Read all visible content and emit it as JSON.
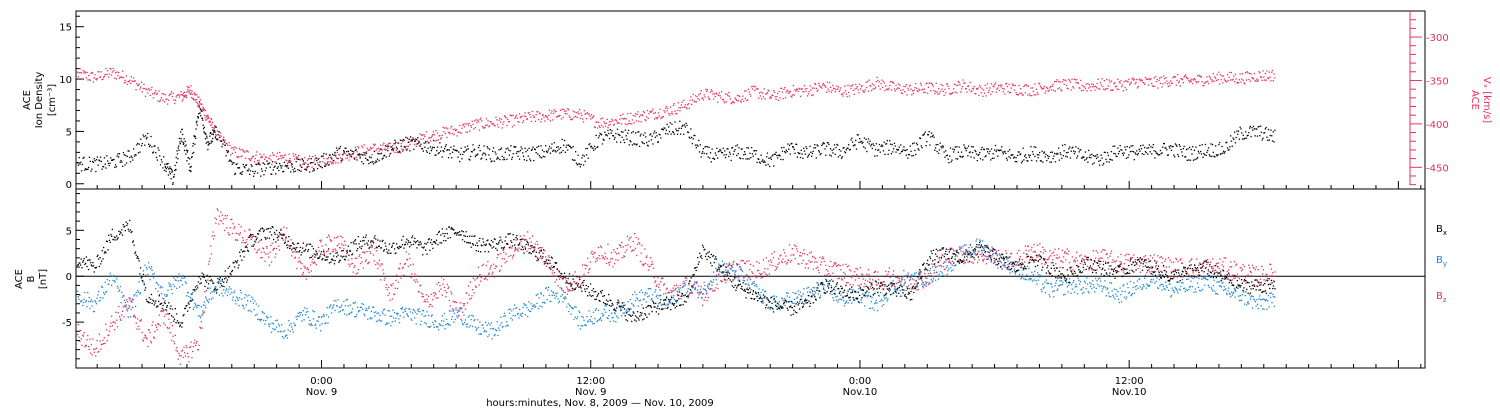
{
  "colors": {
    "black": "#000000",
    "pink": "#e8305f",
    "blue": "#1f86d6"
  },
  "chart_data": [
    {
      "type": "scatter",
      "panel": "top",
      "ylabel_left": [
        "ACE",
        "Ion Density",
        "[cm⁻³]"
      ],
      "ylabel_right": [
        "ACE",
        "Vₓ [km/s]"
      ],
      "ylim_left": [
        -0.5,
        16.5
      ],
      "yticks_left": [
        0,
        5,
        10,
        15
      ],
      "ylim_right": [
        -475,
        -270
      ],
      "yticks_right": [
        -450,
        -400,
        -350,
        -300
      ],
      "grid": false,
      "series": [
        {
          "axis": "left",
          "color": "black",
          "x": [
            0,
            1,
            2,
            3,
            4,
            5,
            5.5,
            6,
            6.5,
            7,
            7.5,
            8,
            9,
            10,
            11,
            12,
            13,
            14,
            15,
            16,
            17,
            18,
            19,
            20,
            21,
            22,
            23,
            24,
            25,
            26,
            27,
            28,
            29,
            30,
            31,
            32,
            33,
            34,
            35,
            36,
            37,
            38,
            39,
            40,
            41,
            42,
            43,
            44,
            45,
            46,
            47,
            48,
            49,
            50,
            51,
            52,
            53,
            54,
            55,
            56,
            57,
            58,
            59,
            60,
            61,
            62,
            63,
            64,
            65,
            66,
            67,
            68,
            69
          ],
          "y": [
            2,
            1.9,
            2.1,
            2.6,
            4.5,
            2,
            0.5,
            5,
            1.5,
            7.5,
            4,
            5,
            1.6,
            1.3,
            1.6,
            1.8,
            1.7,
            2.1,
            3,
            2.8,
            2.5,
            3.4,
            3.9,
            3.7,
            3.3,
            2.8,
            3.2,
            2.8,
            3,
            2.9,
            3.1,
            3.8,
            2.2,
            4.3,
            4.7,
            4.4,
            4.2,
            5.2,
            5.4,
            3,
            2.7,
            3.1,
            2.8,
            2.2,
            3.5,
            2.9,
            3.4,
            3.1,
            4.2,
            3.3,
            3.6,
            3.1,
            4.6,
            2.7,
            3.1,
            2.8,
            3.1,
            2.6,
            3,
            2.7,
            3.2,
            2.6,
            2.4,
            3.3,
            3,
            3.2,
            3.4,
            2.9,
            3.3,
            3.3,
            4.9,
            5,
            4.5
          ]
        },
        {
          "axis": "right",
          "color": "pink",
          "x": [
            0,
            1,
            2,
            3,
            4,
            5,
            6,
            6.5,
            7,
            7.5,
            8,
            9,
            10,
            11,
            12,
            13,
            14,
            15,
            16,
            17,
            18,
            19,
            20,
            21,
            22,
            23,
            24,
            25,
            26,
            27,
            28,
            29,
            30,
            31,
            32,
            33,
            34,
            35,
            36,
            37,
            38,
            39,
            40,
            41,
            42,
            43,
            44,
            45,
            46,
            47,
            48,
            49,
            50,
            51,
            52,
            53,
            54,
            55,
            56,
            57,
            58,
            59,
            60,
            61,
            62,
            63,
            64,
            65,
            66,
            67,
            68,
            69
          ],
          "y": [
            -342,
            -346,
            -340,
            -348,
            -362,
            -370,
            -368,
            -360,
            -376,
            -392,
            -412,
            -432,
            -436,
            -440,
            -438,
            -444,
            -442,
            -438,
            -432,
            -428,
            -428,
            -424,
            -415,
            -410,
            -406,
            -400,
            -398,
            -396,
            -392,
            -390,
            -388,
            -389,
            -398,
            -396,
            -392,
            -388,
            -384,
            -378,
            -365,
            -368,
            -370,
            -362,
            -368,
            -362,
            -361,
            -356,
            -362,
            -359,
            -352,
            -358,
            -360,
            -358,
            -360,
            -355,
            -361,
            -358,
            -359,
            -360,
            -356,
            -354,
            -356,
            -354,
            -355,
            -351,
            -352,
            -349,
            -350,
            -348,
            -346,
            -347,
            -344,
            -343
          ]
        }
      ]
    },
    {
      "type": "scatter",
      "panel": "bottom",
      "ylabel": [
        "ACE",
        "B",
        "[nT]"
      ],
      "ylim": [
        -10,
        9.5
      ],
      "yticks": [
        -5,
        0,
        5
      ],
      "zero_line": true,
      "grid": false,
      "legend_position": "right",
      "legend": [
        {
          "label_main": "B",
          "label_sub": "x",
          "color": "black"
        },
        {
          "label_main": "B",
          "label_sub": "y",
          "color": "blue"
        },
        {
          "label_main": "B",
          "label_sub": "z",
          "color": "pink"
        }
      ],
      "series": [
        {
          "name": "Bx",
          "color": "black",
          "x": [
            0,
            1,
            2,
            3,
            4,
            5,
            6,
            7,
            8,
            9,
            10,
            11,
            12,
            13,
            14,
            15,
            16,
            17,
            18,
            19,
            20,
            21,
            22,
            23,
            24,
            25,
            26,
            27,
            28,
            29,
            30,
            31,
            32,
            33,
            34,
            35,
            36,
            37,
            38,
            39,
            40,
            41,
            42,
            43,
            44,
            45,
            46,
            47,
            48,
            49,
            50,
            51,
            52,
            53,
            54,
            55,
            56,
            57,
            58,
            59,
            60,
            61,
            62,
            63,
            64,
            65,
            66,
            67,
            68,
            69
          ],
          "y": [
            2,
            1,
            4.5,
            5.5,
            -2,
            -3,
            -5,
            0,
            -1,
            1,
            4,
            5,
            4,
            3,
            2.5,
            2,
            3.5,
            4,
            3,
            4,
            3,
            4.5,
            5,
            3.5,
            3.5,
            4,
            3,
            2,
            0,
            -1,
            -2,
            -3,
            -4.5,
            -3.5,
            -3,
            -2.5,
            3,
            1,
            -1,
            -2,
            -3,
            -3.5,
            -3,
            -1,
            -1.5,
            -2,
            -1,
            -1.5,
            -2,
            2,
            2.5,
            2,
            3,
            2,
            1,
            2,
            1,
            0,
            1.5,
            1,
            0.5,
            1.5,
            1,
            0,
            0.5,
            1,
            0,
            -1,
            -1,
            -1
          ]
        },
        {
          "name": "By",
          "color": "blue",
          "x": [
            0,
            1,
            2,
            3,
            4,
            5,
            6,
            7,
            8,
            9,
            10,
            11,
            12,
            13,
            14,
            15,
            16,
            17,
            18,
            19,
            20,
            21,
            22,
            23,
            24,
            25,
            26,
            27,
            28,
            29,
            30,
            31,
            32,
            33,
            34,
            35,
            36,
            37,
            38,
            39,
            40,
            41,
            42,
            43,
            44,
            45,
            46,
            47,
            48,
            49,
            50,
            51,
            52,
            53,
            54,
            55,
            56,
            57,
            58,
            59,
            60,
            61,
            62,
            63,
            64,
            65,
            66,
            67,
            68,
            69
          ],
          "y": [
            -2,
            -3,
            0,
            -4,
            1,
            -2,
            0,
            -4,
            -1,
            -2,
            -3,
            -5,
            -6,
            -4,
            -5,
            -3,
            -3.5,
            -4,
            -4.5,
            -4,
            -4.5,
            -5,
            -4,
            -5.5,
            -6,
            -4,
            -3.5,
            -2,
            -2,
            -5,
            -4,
            -4,
            -2.5,
            -2,
            -3,
            -1,
            -1.5,
            1,
            0.5,
            -1.5,
            -3,
            -2.5,
            -2,
            -1,
            -2.5,
            -2,
            -3,
            -1,
            -0.5,
            0,
            1,
            2.5,
            3.5,
            2,
            1,
            0,
            -1.5,
            -1,
            -1,
            -1,
            -2,
            -1,
            0,
            -1.5,
            -1,
            -0.5,
            -1.5,
            -2,
            -3,
            -2.5
          ]
        },
        {
          "name": "Bz",
          "color": "pink",
          "x": [
            0,
            1,
            2,
            3,
            4,
            5,
            6,
            7,
            8,
            9,
            10,
            11,
            12,
            13,
            14,
            15,
            16,
            17,
            18,
            19,
            20,
            21,
            22,
            23,
            24,
            25,
            26,
            27,
            28,
            29,
            30,
            31,
            32,
            33,
            34,
            35,
            36,
            37,
            38,
            39,
            40,
            41,
            42,
            43,
            44,
            45,
            46,
            47,
            48,
            49,
            50,
            51,
            52,
            53,
            54,
            55,
            56,
            57,
            58,
            59,
            60,
            61,
            62,
            63,
            64,
            65,
            66,
            67,
            68,
            69
          ],
          "y": [
            -6,
            -8,
            -5,
            -3,
            -7,
            -4,
            -9,
            -7,
            7,
            5,
            4,
            2,
            5,
            0,
            3,
            4,
            1,
            3,
            -2,
            2,
            -3,
            -1,
            -4,
            0,
            1,
            3,
            4,
            2,
            -1,
            0,
            3,
            2,
            4,
            1,
            -2,
            -1,
            -2,
            0,
            1,
            0.5,
            1.5,
            2.5,
            2,
            1,
            0.5,
            0,
            -0.5,
            0,
            -0.5,
            0,
            2,
            2.5,
            2.5,
            2,
            1.5,
            3,
            2,
            2,
            1.5,
            2,
            1.5,
            1.5,
            1.5,
            1,
            1,
            1,
            1,
            0.5,
            0,
            0.5
          ]
        }
      ]
    }
  ],
  "x_axis": {
    "label": "hours:minutes, Nov. 8, 2009 — Nov. 10, 2009",
    "ticks": [
      {
        "hour": 12,
        "line1": "0:00",
        "line2": "Nov. 9"
      },
      {
        "hour": 24,
        "line1": "12:00",
        "line2": "Nov. 9"
      },
      {
        "hour": 36,
        "line1": "0:00",
        "line2": "Nov.10"
      },
      {
        "hour": 48,
        "line1": "12:00",
        "line2": "Nov.10"
      }
    ],
    "hour_range": [
      1.1,
      54.5
    ]
  }
}
